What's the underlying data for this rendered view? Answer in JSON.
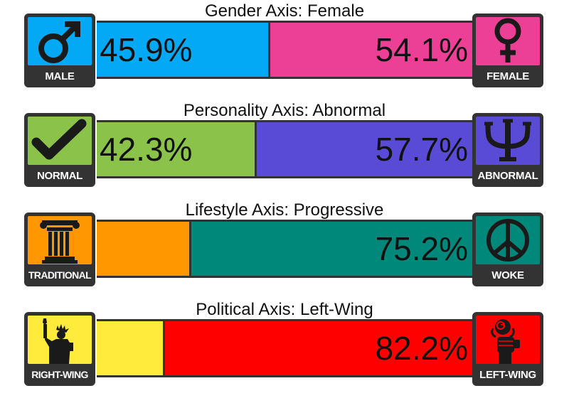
{
  "axes": [
    {
      "title": "Gender Axis: Female",
      "left": {
        "label": "MALE",
        "icon": "male-symbol-icon",
        "color": "#03a9f4"
      },
      "right": {
        "label": "FEMALE",
        "icon": "female-symbol-icon",
        "color": "#ec3f96"
      },
      "left_percent": 45.9,
      "right_percent": 54.1,
      "left_text": "45.9%",
      "right_text": "54.1%"
    },
    {
      "title": "Personality Axis: Abnormal",
      "left": {
        "label": "NORMAL",
        "icon": "checkmark-icon",
        "color": "#8bc34a"
      },
      "right": {
        "label": "ABNORMAL",
        "icon": "psi-icon",
        "color": "#5a4bd6"
      },
      "left_percent": 42.3,
      "right_percent": 57.7,
      "left_text": "42.3%",
      "right_text": "57.7%"
    },
    {
      "title": "Lifestyle Axis: Progressive",
      "left": {
        "label": "TRADITIONAL",
        "icon": "column-icon",
        "color": "#ff9800"
      },
      "right": {
        "label": "WOKE",
        "icon": "peace-sign-icon",
        "color": "#00897b"
      },
      "left_percent": 24.8,
      "right_percent": 75.2,
      "left_text": "",
      "right_text": "75.2%"
    },
    {
      "title": "Political Axis: Left-Wing",
      "left": {
        "label": "RIGHT-WING",
        "icon": "statue-of-liberty-icon",
        "color": "#ffeb3b"
      },
      "right": {
        "label": "LEFT-WING",
        "icon": "fist-and-rose-icon",
        "color": "#ff0000"
      },
      "left_percent": 17.8,
      "right_percent": 82.2,
      "left_text": "",
      "right_text": "82.2%"
    }
  ]
}
